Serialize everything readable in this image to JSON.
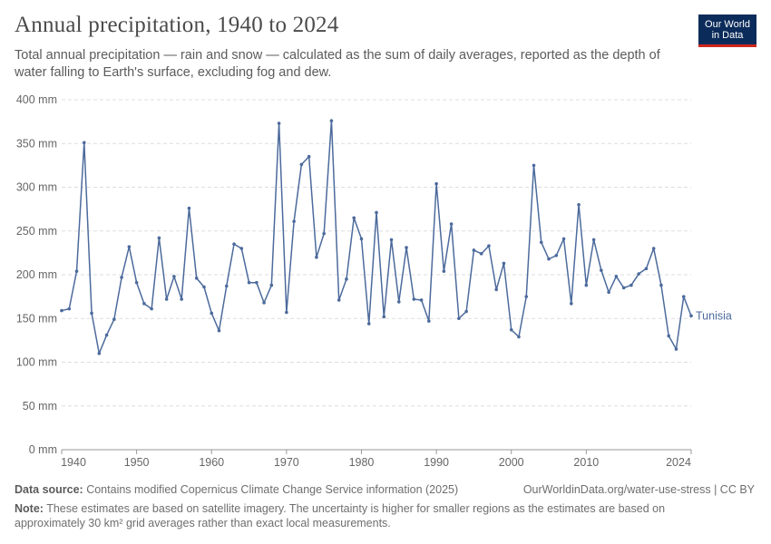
{
  "header": {
    "title": "Annual precipitation, 1940 to 2024",
    "subtitle": "Total annual precipitation — rain and snow — calculated as the sum of daily averages, reported as the depth of water falling to Earth's surface, excluding fog and dew."
  },
  "logo": {
    "line1": "Our World",
    "line2": "in Data"
  },
  "footer": {
    "source_label": "Data source:",
    "source_text": " Contains modified Copernicus Climate Change Service information (2025)",
    "url": "OurWorldinData.org/water-use-stress | CC BY",
    "note_label": "Note:",
    "note_text": " These estimates are based on satellite imagery. The uncertainty is higher for smaller regions as the estimates are based on approximately 30 km² grid averages rather than exact local measurements."
  },
  "colors": {
    "series": "#4c6a9c",
    "grid": "#dddddd",
    "axis": "#999999"
  },
  "chart_data": {
    "type": "line",
    "title": "Annual precipitation, 1940 to 2024",
    "xlabel": "",
    "ylabel": "",
    "ylim": [
      0,
      400
    ],
    "xlim": [
      1940,
      2024
    ],
    "y_ticks": [
      0,
      50,
      100,
      150,
      200,
      250,
      300,
      350,
      400
    ],
    "y_tick_labels": [
      "0 mm",
      "50 mm",
      "100 mm",
      "150 mm",
      "200 mm",
      "250 mm",
      "300 mm",
      "350 mm",
      "400 mm"
    ],
    "x_ticks": [
      1940,
      1950,
      1960,
      1970,
      1980,
      1990,
      2000,
      2010,
      2024
    ],
    "x_tick_labels": [
      "1940",
      "1950",
      "1960",
      "1970",
      "1980",
      "1990",
      "2000",
      "2010",
      "2024"
    ],
    "grid": "horizontal dashed",
    "series": [
      {
        "name": "Tunisia",
        "x": [
          1940,
          1941,
          1942,
          1943,
          1944,
          1945,
          1946,
          1947,
          1948,
          1949,
          1950,
          1951,
          1952,
          1953,
          1954,
          1955,
          1956,
          1957,
          1958,
          1959,
          1960,
          1961,
          1962,
          1963,
          1964,
          1965,
          1966,
          1967,
          1968,
          1969,
          1970,
          1971,
          1972,
          1973,
          1974,
          1975,
          1976,
          1977,
          1978,
          1979,
          1980,
          1981,
          1982,
          1983,
          1984,
          1985,
          1986,
          1987,
          1988,
          1989,
          1990,
          1991,
          1992,
          1993,
          1994,
          1995,
          1996,
          1997,
          1998,
          1999,
          2000,
          2001,
          2002,
          2003,
          2004,
          2005,
          2006,
          2007,
          2008,
          2009,
          2010,
          2011,
          2012,
          2013,
          2014,
          2015,
          2016,
          2017,
          2018,
          2019,
          2020,
          2021,
          2022,
          2023,
          2024
        ],
        "values": [
          159,
          161,
          204,
          351,
          156,
          110,
          131,
          149,
          197,
          232,
          191,
          167,
          161,
          242,
          172,
          198,
          172,
          276,
          196,
          186,
          156,
          136,
          187,
          235,
          230,
          191,
          191,
          168,
          188,
          373,
          157,
          261,
          326,
          335,
          220,
          247,
          376,
          171,
          195,
          265,
          241,
          144,
          271,
          152,
          240,
          169,
          231,
          172,
          171,
          147,
          304,
          204,
          258,
          150,
          158,
          228,
          224,
          233,
          183,
          213,
          137,
          129,
          175,
          325,
          237,
          218,
          222,
          241,
          167,
          280,
          188,
          240,
          205,
          180,
          198,
          185,
          188,
          201,
          207,
          230,
          188,
          130,
          115,
          175,
          153
        ]
      }
    ]
  }
}
